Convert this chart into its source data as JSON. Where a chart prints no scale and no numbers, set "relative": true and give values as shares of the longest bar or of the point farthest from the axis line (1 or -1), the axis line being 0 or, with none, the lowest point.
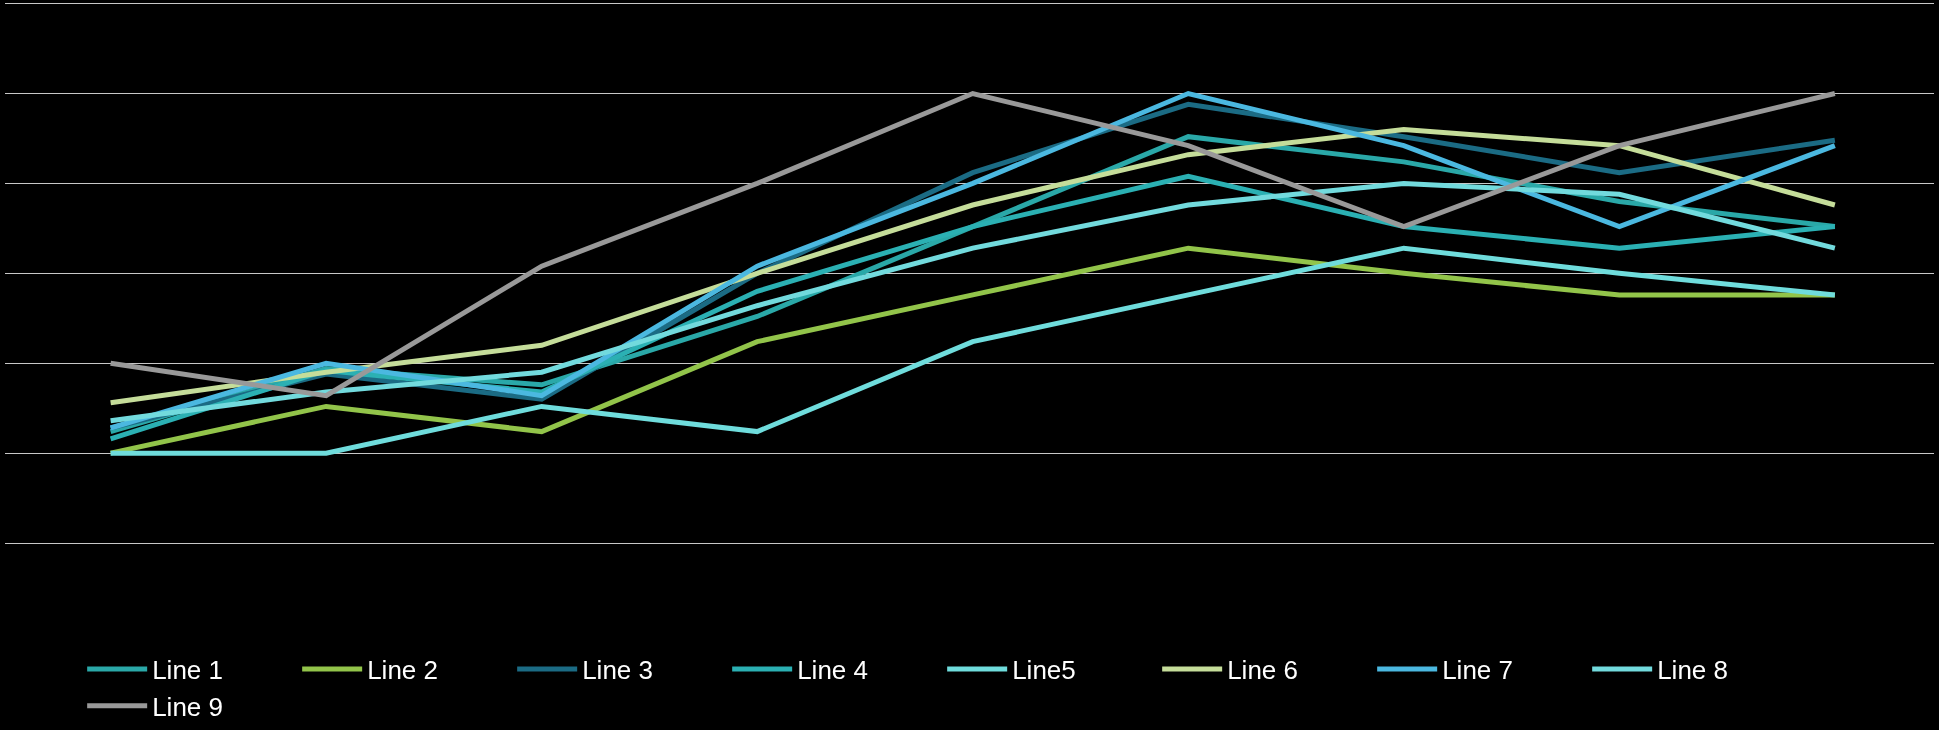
{
  "chart_data": {
    "type": "line",
    "relative": true,
    "grid": "y",
    "legend": "bottom",
    "marker": "none",
    "line_style": "solid",
    "categories": [
      null,
      null,
      null,
      null,
      null,
      null,
      null,
      null,
      null
    ],
    "series": [
      {
        "name": "Line 1",
        "color": "#2aa8a8",
        "values": [
          0.06,
          0.235,
          0.19,
          0.38,
          0.63,
          0.88,
          0.81,
          0.7,
          0.63
        ]
      },
      {
        "name": "Line 2",
        "color": "#92c44a",
        "values": [
          0,
          0.13,
          0.06,
          0.31,
          0.44,
          0.57,
          0.5,
          0.44,
          0.44
        ]
      },
      {
        "name": "Line 3",
        "color": "#1b6b84",
        "values": [
          0.07,
          0.22,
          0.15,
          0.5,
          0.78,
          0.97,
          0.88,
          0.78,
          0.87
        ]
      },
      {
        "name": "Line 4",
        "color": "#2bb0b3",
        "values": [
          0.04,
          0.23,
          0.17,
          0.45,
          0.63,
          0.77,
          0.63,
          0.57,
          0.63
        ]
      },
      {
        "name": "Line5",
        "color": "#6fdcdc",
        "values": [
          0,
          0,
          0.13,
          0.06,
          0.31,
          0.44,
          0.57,
          0.5,
          0.44
        ]
      },
      {
        "name": "Line 6",
        "color": "#c5dd9a",
        "values": [
          0.14,
          0.225,
          0.3,
          0.5,
          0.69,
          0.83,
          0.9,
          0.855,
          0.69
        ]
      },
      {
        "name": "Line 7",
        "color": "#4bb8e0",
        "values": [
          0.07,
          0.25,
          0.16,
          0.52,
          0.75,
          1,
          0.855,
          0.63,
          0.855
        ]
      },
      {
        "name": "Line 8",
        "color": "#72dadd",
        "values": [
          0.09,
          0.17,
          0.225,
          0.41,
          0.57,
          0.69,
          0.75,
          0.72,
          0.57
        ]
      },
      {
        "name": "Line 9",
        "color": "#999999",
        "values": [
          0.25,
          0.16,
          0.52,
          0.75,
          1,
          0.855,
          0.63,
          0.855,
          1
        ]
      }
    ]
  }
}
